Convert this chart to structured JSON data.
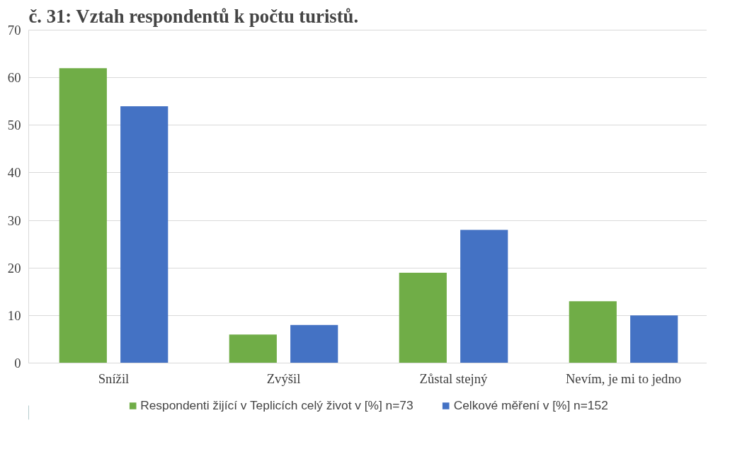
{
  "chart_data": {
    "type": "bar",
    "title": "č. 31: Vztah respondentů k počtu turistů.",
    "categories": [
      "Snížil",
      "Zvýšil",
      "Zůstal stejný",
      "Nevím, je mi to jedno"
    ],
    "series": [
      {
        "name": "Respondenti žijící v Teplicích celý život v [%] n=73",
        "color": "#70ad47",
        "values": [
          62,
          6,
          19,
          13
        ]
      },
      {
        "name": "Celkové měření v [%] n=152",
        "color": "#4472c4",
        "values": [
          54,
          8,
          28,
          10
        ]
      }
    ],
    "ylim": [
      0,
      70
    ],
    "yticks": [
      0,
      10,
      20,
      30,
      40,
      50,
      60,
      70
    ],
    "grid": "y",
    "legend": "bottom"
  }
}
